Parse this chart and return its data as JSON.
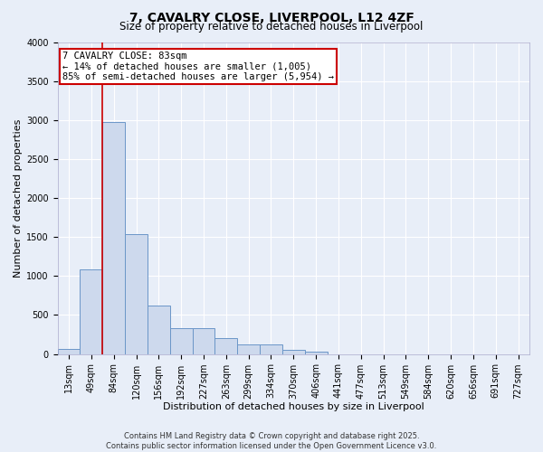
{
  "title": "7, CAVALRY CLOSE, LIVERPOOL, L12 4ZF",
  "subtitle": "Size of property relative to detached houses in Liverpool",
  "xlabel": "Distribution of detached houses by size in Liverpool",
  "ylabel": "Number of detached properties",
  "bar_color": "#cdd9ed",
  "bar_edge_color": "#6b96c8",
  "categories": [
    "13sqm",
    "49sqm",
    "84sqm",
    "120sqm",
    "156sqm",
    "192sqm",
    "227sqm",
    "263sqm",
    "299sqm",
    "334sqm",
    "370sqm",
    "406sqm",
    "441sqm",
    "477sqm",
    "513sqm",
    "549sqm",
    "584sqm",
    "620sqm",
    "656sqm",
    "691sqm",
    "727sqm"
  ],
  "values": [
    60,
    1080,
    2970,
    1540,
    620,
    330,
    330,
    200,
    120,
    120,
    50,
    30,
    0,
    0,
    0,
    0,
    0,
    0,
    0,
    0,
    0
  ],
  "annotation_label": "7 CAVALRY CLOSE: 83sqm",
  "annotation_line1": "← 14% of detached houses are smaller (1,005)",
  "annotation_line2": "85% of semi-detached houses are larger (5,954) →",
  "annotation_box_facecolor": "#ffffff",
  "annotation_box_edgecolor": "#cc0000",
  "property_line_color": "#cc0000",
  "property_line_x": 1.5,
  "ylim": [
    0,
    4000
  ],
  "yticks": [
    0,
    500,
    1000,
    1500,
    2000,
    2500,
    3000,
    3500,
    4000
  ],
  "footer_line1": "Contains HM Land Registry data © Crown copyright and database right 2025.",
  "footer_line2": "Contains public sector information licensed under the Open Government Licence v3.0.",
  "background_color": "#e8eef8",
  "grid_color": "#ffffff",
  "title_fontsize": 10,
  "subtitle_fontsize": 8.5,
  "axis_label_fontsize": 8,
  "tick_fontsize": 7,
  "annotation_fontsize": 7.5,
  "footer_fontsize": 6
}
